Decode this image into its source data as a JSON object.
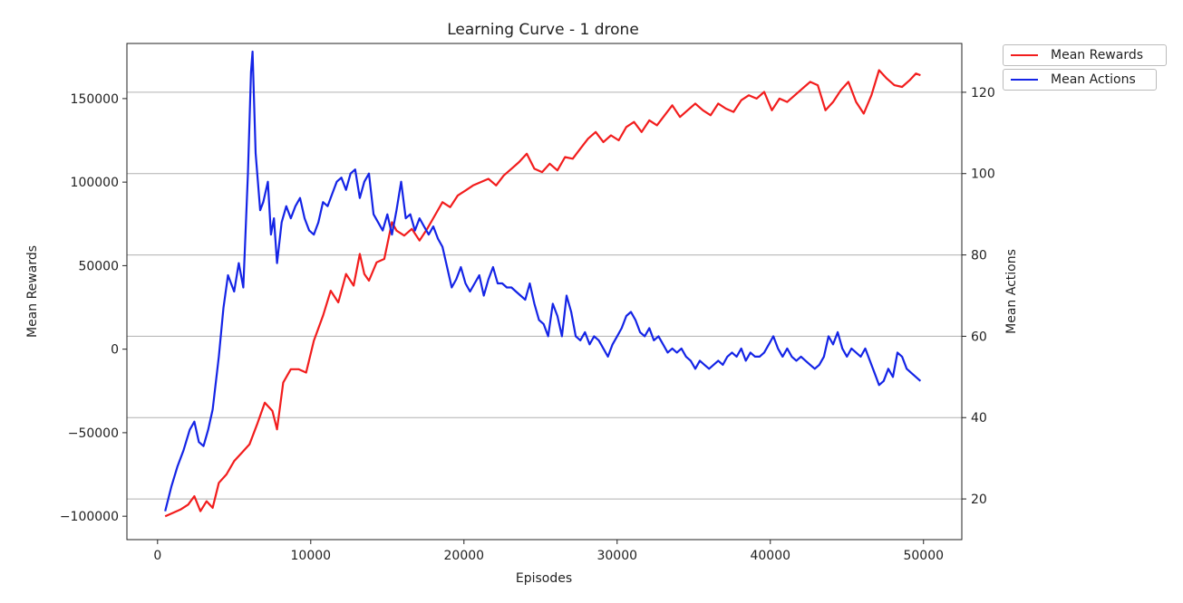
{
  "chart_data": {
    "type": "line",
    "title": "Learning Curve - 1 drone",
    "xlabel": "Episodes",
    "ylabel_left": "Mean Rewards",
    "ylabel_right": "Mean Actions",
    "xlim": [
      -2000,
      52500
    ],
    "ylim_left": [
      -114000,
      183000
    ],
    "ylim_right": [
      10,
      132
    ],
    "xticks": [
      0,
      10000,
      20000,
      30000,
      40000,
      50000
    ],
    "yticks_left": [
      -100000,
      -50000,
      0,
      50000,
      100000,
      150000
    ],
    "yticks_right": [
      20,
      40,
      60,
      80,
      100,
      120
    ],
    "ytick_labels_left": [
      "−100000",
      "−50000",
      "0",
      "50000",
      "100000",
      "150000"
    ],
    "grid": "horizontal (right axis)",
    "legend_placement": "outside top-right",
    "series": [
      {
        "name": "Mean Rewards",
        "axis": "left",
        "color": "#f21d1d",
        "points": [
          [
            500,
            -100000
          ],
          [
            1000,
            -98000
          ],
          [
            1500,
            -96000
          ],
          [
            2000,
            -93000
          ],
          [
            2400,
            -88000
          ],
          [
            2800,
            -97000
          ],
          [
            3200,
            -91000
          ],
          [
            3600,
            -95000
          ],
          [
            4000,
            -80000
          ],
          [
            4500,
            -75000
          ],
          [
            5000,
            -67000
          ],
          [
            5500,
            -62000
          ],
          [
            6000,
            -57000
          ],
          [
            6500,
            -45000
          ],
          [
            7000,
            -32000
          ],
          [
            7500,
            -37000
          ],
          [
            7800,
            -48000
          ],
          [
            8200,
            -20000
          ],
          [
            8700,
            -12000
          ],
          [
            9200,
            -12000
          ],
          [
            9700,
            -14000
          ],
          [
            10200,
            5000
          ],
          [
            10800,
            20000
          ],
          [
            11300,
            35000
          ],
          [
            11800,
            28000
          ],
          [
            12300,
            45000
          ],
          [
            12800,
            38000
          ],
          [
            13200,
            57000
          ],
          [
            13500,
            45000
          ],
          [
            13800,
            41000
          ],
          [
            14300,
            52000
          ],
          [
            14800,
            54000
          ],
          [
            15300,
            76000
          ],
          [
            15600,
            71000
          ],
          [
            16100,
            68000
          ],
          [
            16600,
            72000
          ],
          [
            17100,
            65000
          ],
          [
            17600,
            72000
          ],
          [
            18100,
            80000
          ],
          [
            18600,
            88000
          ],
          [
            19100,
            85000
          ],
          [
            19600,
            92000
          ],
          [
            20100,
            95000
          ],
          [
            20600,
            98000
          ],
          [
            21100,
            100000
          ],
          [
            21600,
            102000
          ],
          [
            22100,
            98000
          ],
          [
            22600,
            104000
          ],
          [
            23100,
            108000
          ],
          [
            23600,
            112000
          ],
          [
            24100,
            117000
          ],
          [
            24600,
            108000
          ],
          [
            25100,
            106000
          ],
          [
            25600,
            111000
          ],
          [
            26100,
            107000
          ],
          [
            26600,
            115000
          ],
          [
            27100,
            114000
          ],
          [
            27600,
            120000
          ],
          [
            28100,
            126000
          ],
          [
            28600,
            130000
          ],
          [
            29100,
            124000
          ],
          [
            29600,
            128000
          ],
          [
            30100,
            125000
          ],
          [
            30600,
            133000
          ],
          [
            31100,
            136000
          ],
          [
            31600,
            130000
          ],
          [
            32100,
            137000
          ],
          [
            32600,
            134000
          ],
          [
            33100,
            140000
          ],
          [
            33600,
            146000
          ],
          [
            34100,
            139000
          ],
          [
            34600,
            143000
          ],
          [
            35100,
            147000
          ],
          [
            35600,
            143000
          ],
          [
            36100,
            140000
          ],
          [
            36600,
            147000
          ],
          [
            37100,
            144000
          ],
          [
            37600,
            142000
          ],
          [
            38100,
            149000
          ],
          [
            38600,
            152000
          ],
          [
            39100,
            150000
          ],
          [
            39600,
            154000
          ],
          [
            40100,
            143000
          ],
          [
            40600,
            150000
          ],
          [
            41100,
            148000
          ],
          [
            41600,
            152000
          ],
          [
            42100,
            156000
          ],
          [
            42600,
            160000
          ],
          [
            43100,
            158000
          ],
          [
            43600,
            143000
          ],
          [
            44100,
            148000
          ],
          [
            44600,
            155000
          ],
          [
            45100,
            160000
          ],
          [
            45600,
            148000
          ],
          [
            46100,
            141000
          ],
          [
            46600,
            152000
          ],
          [
            47100,
            167000
          ],
          [
            47600,
            162000
          ],
          [
            48100,
            158000
          ],
          [
            48600,
            157000
          ],
          [
            49100,
            161000
          ],
          [
            49500,
            165000
          ],
          [
            49800,
            164000
          ]
        ]
      },
      {
        "name": "Mean Actions",
        "axis": "right",
        "color": "#1424e6",
        "points": [
          [
            500,
            17
          ],
          [
            900,
            23
          ],
          [
            1300,
            28
          ],
          [
            1700,
            32
          ],
          [
            2100,
            37
          ],
          [
            2400,
            39
          ],
          [
            2700,
            34
          ],
          [
            3000,
            33
          ],
          [
            3300,
            37
          ],
          [
            3600,
            42
          ],
          [
            4000,
            55
          ],
          [
            4300,
            67
          ],
          [
            4600,
            75
          ],
          [
            4800,
            73
          ],
          [
            5000,
            71
          ],
          [
            5300,
            78
          ],
          [
            5600,
            72
          ],
          [
            5900,
            100
          ],
          [
            6100,
            125
          ],
          [
            6200,
            130
          ],
          [
            6400,
            105
          ],
          [
            6700,
            91
          ],
          [
            6900,
            93
          ],
          [
            7200,
            98
          ],
          [
            7400,
            85
          ],
          [
            7600,
            89
          ],
          [
            7800,
            78
          ],
          [
            8100,
            88
          ],
          [
            8400,
            92
          ],
          [
            8700,
            89
          ],
          [
            9000,
            92
          ],
          [
            9300,
            94
          ],
          [
            9600,
            89
          ],
          [
            9900,
            86
          ],
          [
            10200,
            85
          ],
          [
            10500,
            88
          ],
          [
            10800,
            93
          ],
          [
            11100,
            92
          ],
          [
            11400,
            95
          ],
          [
            11700,
            98
          ],
          [
            12000,
            99
          ],
          [
            12300,
            96
          ],
          [
            12600,
            100
          ],
          [
            12900,
            101
          ],
          [
            13200,
            94
          ],
          [
            13500,
            98
          ],
          [
            13800,
            100
          ],
          [
            14100,
            90
          ],
          [
            14400,
            88
          ],
          [
            14700,
            86
          ],
          [
            15000,
            90
          ],
          [
            15300,
            85
          ],
          [
            15600,
            91
          ],
          [
            15900,
            98
          ],
          [
            16200,
            89
          ],
          [
            16500,
            90
          ],
          [
            16800,
            86
          ],
          [
            17100,
            89
          ],
          [
            17400,
            87
          ],
          [
            17700,
            85
          ],
          [
            18000,
            87
          ],
          [
            18300,
            84
          ],
          [
            18600,
            82
          ],
          [
            18900,
            77
          ],
          [
            19200,
            72
          ],
          [
            19500,
            74
          ],
          [
            19800,
            77
          ],
          [
            20100,
            73
          ],
          [
            20400,
            71
          ],
          [
            20700,
            73
          ],
          [
            21000,
            75
          ],
          [
            21300,
            70
          ],
          [
            21600,
            74
          ],
          [
            21900,
            77
          ],
          [
            22200,
            73
          ],
          [
            22500,
            73
          ],
          [
            22800,
            72
          ],
          [
            23100,
            72
          ],
          [
            23400,
            71
          ],
          [
            23700,
            70
          ],
          [
            24000,
            69
          ],
          [
            24300,
            73
          ],
          [
            24600,
            68
          ],
          [
            24900,
            64
          ],
          [
            25200,
            63
          ],
          [
            25500,
            60
          ],
          [
            25800,
            68
          ],
          [
            26100,
            65
          ],
          [
            26400,
            60
          ],
          [
            26700,
            70
          ],
          [
            27000,
            66
          ],
          [
            27300,
            60
          ],
          [
            27600,
            59
          ],
          [
            27900,
            61
          ],
          [
            28200,
            58
          ],
          [
            28500,
            60
          ],
          [
            28800,
            59
          ],
          [
            29100,
            57
          ],
          [
            29400,
            55
          ],
          [
            29700,
            58
          ],
          [
            30000,
            60
          ],
          [
            30300,
            62
          ],
          [
            30600,
            65
          ],
          [
            30900,
            66
          ],
          [
            31200,
            64
          ],
          [
            31500,
            61
          ],
          [
            31800,
            60
          ],
          [
            32100,
            62
          ],
          [
            32400,
            59
          ],
          [
            32700,
            60
          ],
          [
            33000,
            58
          ],
          [
            33300,
            56
          ],
          [
            33600,
            57
          ],
          [
            33900,
            56
          ],
          [
            34200,
            57
          ],
          [
            34500,
            55
          ],
          [
            34800,
            54
          ],
          [
            35100,
            52
          ],
          [
            35400,
            54
          ],
          [
            35700,
            53
          ],
          [
            36000,
            52
          ],
          [
            36300,
            53
          ],
          [
            36600,
            54
          ],
          [
            36900,
            53
          ],
          [
            37200,
            55
          ],
          [
            37500,
            56
          ],
          [
            37800,
            55
          ],
          [
            38100,
            57
          ],
          [
            38400,
            54
          ],
          [
            38700,
            56
          ],
          [
            39000,
            55
          ],
          [
            39300,
            55
          ],
          [
            39600,
            56
          ],
          [
            39900,
            58
          ],
          [
            40200,
            60
          ],
          [
            40500,
            57
          ],
          [
            40800,
            55
          ],
          [
            41100,
            57
          ],
          [
            41400,
            55
          ],
          [
            41700,
            54
          ],
          [
            42000,
            55
          ],
          [
            42300,
            54
          ],
          [
            42600,
            53
          ],
          [
            42900,
            52
          ],
          [
            43200,
            53
          ],
          [
            43500,
            55
          ],
          [
            43800,
            60
          ],
          [
            44100,
            58
          ],
          [
            44400,
            61
          ],
          [
            44700,
            57
          ],
          [
            45000,
            55
          ],
          [
            45300,
            57
          ],
          [
            45600,
            56
          ],
          [
            45900,
            55
          ],
          [
            46200,
            57
          ],
          [
            46500,
            54
          ],
          [
            46800,
            51
          ],
          [
            47100,
            48
          ],
          [
            47400,
            49
          ],
          [
            47700,
            52
          ],
          [
            48000,
            50
          ],
          [
            48300,
            56
          ],
          [
            48600,
            55
          ],
          [
            48900,
            52
          ],
          [
            49200,
            51
          ],
          [
            49500,
            50
          ],
          [
            49800,
            49
          ]
        ]
      }
    ]
  }
}
